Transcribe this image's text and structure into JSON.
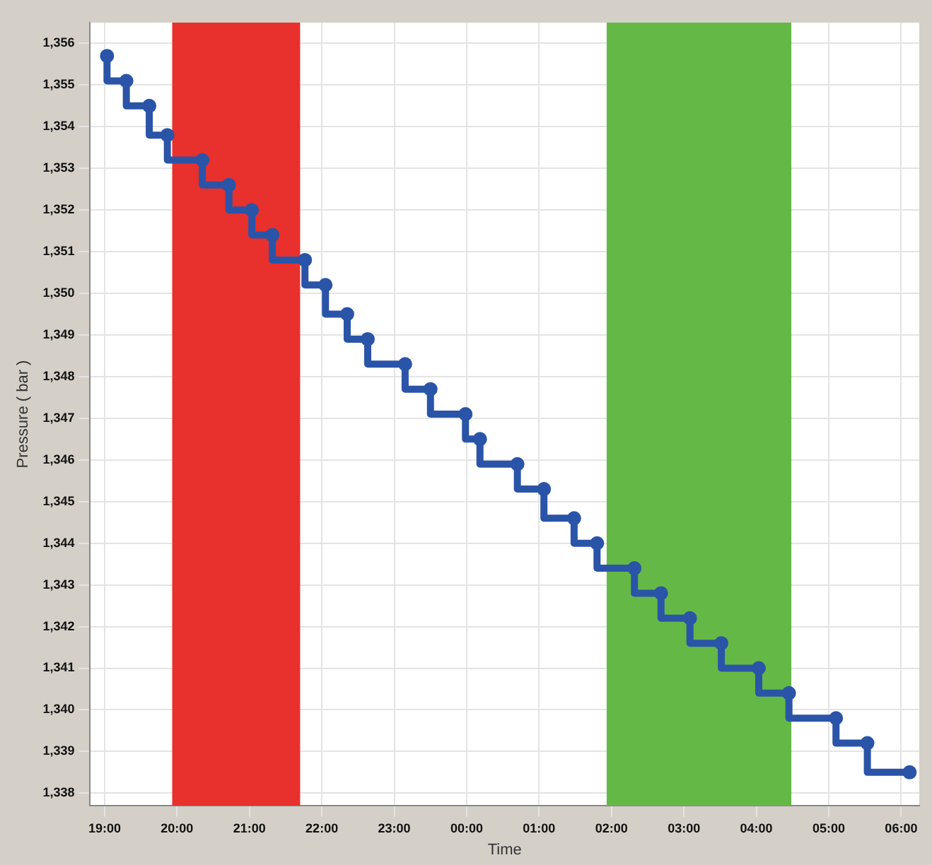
{
  "chart_data": {
    "type": "step",
    "xlabel": "Time",
    "ylabel": "Pressure ( bar )",
    "x": [
      "2000-01-01T19:02",
      "2000-01-01T19:18",
      "2000-01-01T19:37",
      "2000-01-01T19:52",
      "2000-01-01T20:21",
      "2000-01-01T20:43",
      "2000-01-01T21:02",
      "2000-01-01T21:19",
      "2000-01-01T21:46",
      "2000-01-01T22:03",
      "2000-01-01T22:21",
      "2000-01-01T22:38",
      "2000-01-01T23:09",
      "2000-01-01T23:30",
      "2000-01-01T23:59",
      "2000-01-02T00:11",
      "2000-01-02T00:42",
      "2000-01-02T01:04",
      "2000-01-02T01:29",
      "2000-01-02T01:48",
      "2000-01-02T02:19",
      "2000-01-02T02:41",
      "2000-01-02T03:05",
      "2000-01-02T03:31",
      "2000-01-02T04:02",
      "2000-01-02T04:27",
      "2000-01-02T05:06",
      "2000-01-02T05:32",
      "2000-01-02T06:07"
    ],
    "series": [
      {
        "color": "#2a54a8",
        "values": [
          1355.7,
          1355.1,
          1354.5,
          1353.8,
          1353.2,
          1352.6,
          1352.0,
          1351.4,
          1350.8,
          1350.2,
          1349.5,
          1348.9,
          1348.3,
          1347.7,
          1347.1,
          1346.5,
          1345.9,
          1345.3,
          1344.6,
          1344.0,
          1343.4,
          1342.8,
          1342.2,
          1341.6,
          1341.0,
          1340.4,
          1339.8,
          1339.2,
          1338.5
        ]
      }
    ],
    "xlim": [
      "2000-01-01T18:48",
      "2000-01-02T06:15"
    ],
    "xticks": [
      {
        "value": "2000-01-01T19:00",
        "label": "19:00"
      },
      {
        "value": "2000-01-01T20:00",
        "label": "20:00"
      },
      {
        "value": "2000-01-01T21:00",
        "label": "21:00"
      },
      {
        "value": "2000-01-01T22:00",
        "label": "22:00"
      },
      {
        "value": "2000-01-01T23:00",
        "label": "23:00"
      },
      {
        "value": "2000-01-02T00:00",
        "label": "00:00"
      },
      {
        "value": "2000-01-02T01:00",
        "label": "01:00"
      },
      {
        "value": "2000-01-02T02:00",
        "label": "02:00"
      },
      {
        "value": "2000-01-02T03:00",
        "label": "03:00"
      },
      {
        "value": "2000-01-02T04:00",
        "label": "04:00"
      },
      {
        "value": "2000-01-02T05:00",
        "label": "05:00"
      },
      {
        "value": "2000-01-02T06:00",
        "label": "06:00"
      }
    ],
    "ylim": [
      1337.7,
      1356.5
    ],
    "yticks": [
      {
        "value": 1338,
        "label": "1,338"
      },
      {
        "value": 1339,
        "label": "1,339"
      },
      {
        "value": 1340,
        "label": "1,340"
      },
      {
        "value": 1341,
        "label": "1,341"
      },
      {
        "value": 1342,
        "label": "1,342"
      },
      {
        "value": 1343,
        "label": "1,343"
      },
      {
        "value": 1344,
        "label": "1,344"
      },
      {
        "value": 1345,
        "label": "1,345"
      },
      {
        "value": 1346,
        "label": "1,346"
      },
      {
        "value": 1347,
        "label": "1,347"
      },
      {
        "value": 1348,
        "label": "1,348"
      },
      {
        "value": 1349,
        "label": "1,349"
      },
      {
        "value": 1350,
        "label": "1,350"
      },
      {
        "value": 1351,
        "label": "1,351"
      },
      {
        "value": 1352,
        "label": "1,352"
      },
      {
        "value": 1353,
        "label": "1,353"
      },
      {
        "value": 1354,
        "label": "1,354"
      },
      {
        "value": 1355,
        "label": "1,355"
      },
      {
        "value": 1356,
        "label": "1,356"
      }
    ],
    "bands": [
      {
        "axis": "x",
        "from": "2000-01-01T19:56",
        "to": "2000-01-01T21:42",
        "color": "#e8302c"
      },
      {
        "axis": "x",
        "from": "2000-01-02T01:56",
        "to": "2000-01-02T04:29",
        "color": "#64b946"
      }
    ],
    "grid": true,
    "legend": false,
    "marker": "circle",
    "line_style": "solid"
  }
}
